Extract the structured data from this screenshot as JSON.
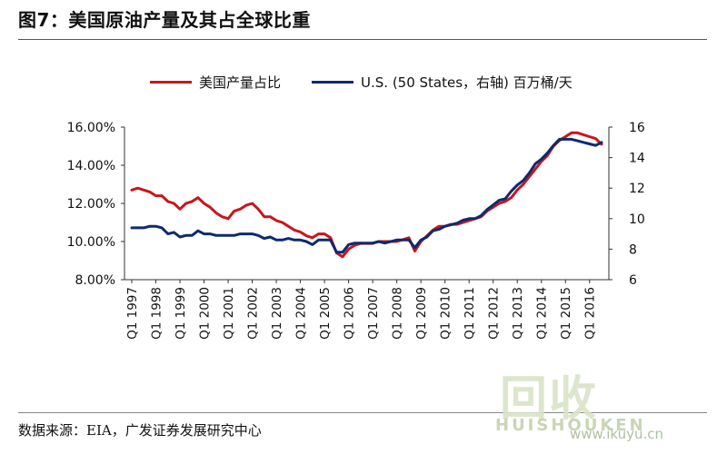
{
  "figure": {
    "title": "图7：美国原油产量及其占全球比重",
    "source": "数据来源：EIA，广发证券发展研究中心"
  },
  "watermark": {
    "main": "回收",
    "sub": "HUISHOUKEN",
    "url": "www.ikuyu.cn"
  },
  "colors": {
    "share_series": "#c8161d",
    "us_series": "#0e2a6e",
    "axis": "#333333"
  },
  "chart_data": {
    "type": "line",
    "legend_position": "top",
    "grid": false,
    "x": [
      "Q1 1997",
      "Q2 1997",
      "Q3 1997",
      "Q4 1997",
      "Q1 1998",
      "Q2 1998",
      "Q3 1998",
      "Q4 1998",
      "Q1 1999",
      "Q2 1999",
      "Q3 1999",
      "Q4 1999",
      "Q1 2000",
      "Q2 2000",
      "Q3 2000",
      "Q4 2000",
      "Q1 2001",
      "Q2 2001",
      "Q3 2001",
      "Q4 2001",
      "Q1 2002",
      "Q2 2002",
      "Q3 2002",
      "Q4 2002",
      "Q1 2003",
      "Q2 2003",
      "Q3 2003",
      "Q4 2003",
      "Q1 2004",
      "Q2 2004",
      "Q3 2004",
      "Q4 2004",
      "Q1 2005",
      "Q2 2005",
      "Q3 2005",
      "Q4 2005",
      "Q1 2006",
      "Q2 2006",
      "Q3 2006",
      "Q4 2006",
      "Q1 2007",
      "Q2 2007",
      "Q3 2007",
      "Q4 2007",
      "Q1 2008",
      "Q2 2008",
      "Q3 2008",
      "Q4 2008",
      "Q1 2009",
      "Q2 2009",
      "Q3 2009",
      "Q4 2009",
      "Q1 2010",
      "Q2 2010",
      "Q3 2010",
      "Q4 2010",
      "Q1 2011",
      "Q2 2011",
      "Q3 2011",
      "Q4 2011",
      "Q1 2012",
      "Q2 2012",
      "Q3 2012",
      "Q4 2012",
      "Q1 2013",
      "Q2 2013",
      "Q3 2013",
      "Q4 2013",
      "Q1 2014",
      "Q2 2014",
      "Q3 2014",
      "Q4 2014",
      "Q1 2015",
      "Q2 2015",
      "Q3 2015",
      "Q4 2015",
      "Q1 2016",
      "Q2 2016",
      "Q3 2016"
    ],
    "x_tick_labels": [
      "Q1 1997",
      "Q1 1998",
      "Q1 1999",
      "Q1 2000",
      "Q1 2001",
      "Q1 2002",
      "Q1 2003",
      "Q1 2004",
      "Q1 2005",
      "Q1 2006",
      "Q1 2007",
      "Q1 2008",
      "Q1 2009",
      "Q1 2010",
      "Q1 2011",
      "Q1 2012",
      "Q1 2013",
      "Q1 2014",
      "Q1 2015",
      "Q1 2016"
    ],
    "y_left": {
      "ylim": [
        8,
        16
      ],
      "ticks": [
        "8.00%",
        "10.00%",
        "12.00%",
        "14.00%",
        "16.00%"
      ],
      "tick_values": [
        8,
        10,
        12,
        14,
        16
      ]
    },
    "y_right": {
      "ylim": [
        6,
        16
      ],
      "ticks": [
        "6",
        "8",
        "10",
        "12",
        "14",
        "16"
      ],
      "tick_values": [
        6,
        8,
        10,
        12,
        14,
        16
      ]
    },
    "series": [
      {
        "name": "美国产量占比",
        "axis": "left",
        "values": [
          12.7,
          12.8,
          12.7,
          12.6,
          12.4,
          12.4,
          12.1,
          12.0,
          11.7,
          12.0,
          12.1,
          12.3,
          12.0,
          11.8,
          11.5,
          11.3,
          11.2,
          11.6,
          11.7,
          11.9,
          12.0,
          11.7,
          11.3,
          11.3,
          11.1,
          11.0,
          10.8,
          10.6,
          10.5,
          10.3,
          10.2,
          10.4,
          10.4,
          10.2,
          9.4,
          9.2,
          9.6,
          9.8,
          9.9,
          9.9,
          9.9,
          10.0,
          10.0,
          10.0,
          10.0,
          10.1,
          10.2,
          9.5,
          10.0,
          10.3,
          10.6,
          10.8,
          10.8,
          10.9,
          10.9,
          11.0,
          11.1,
          11.2,
          11.3,
          11.6,
          11.8,
          12.0,
          12.1,
          12.3,
          12.7,
          13.0,
          13.4,
          13.8,
          14.2,
          14.5,
          15.0,
          15.3,
          15.5,
          15.7,
          15.7,
          15.6,
          15.5,
          15.4,
          15.1
        ]
      },
      {
        "name": "U.S. (50 States，右轴) 百万桶/天",
        "axis": "right",
        "values": [
          9.4,
          9.4,
          9.4,
          9.5,
          9.5,
          9.4,
          9.0,
          9.1,
          8.8,
          8.9,
          8.9,
          9.2,
          9.0,
          9.0,
          8.9,
          8.9,
          8.9,
          8.9,
          9.0,
          9.0,
          9.0,
          8.9,
          8.7,
          8.8,
          8.6,
          8.6,
          8.7,
          8.6,
          8.6,
          8.5,
          8.3,
          8.6,
          8.6,
          8.6,
          7.8,
          7.8,
          8.3,
          8.4,
          8.4,
          8.4,
          8.4,
          8.5,
          8.4,
          8.5,
          8.6,
          8.6,
          8.6,
          8.1,
          8.6,
          8.8,
          9.2,
          9.3,
          9.5,
          9.6,
          9.7,
          9.9,
          10.0,
          10.0,
          10.2,
          10.6,
          10.9,
          11.2,
          11.3,
          11.8,
          12.2,
          12.5,
          13.0,
          13.6,
          13.9,
          14.3,
          14.8,
          15.2,
          15.2,
          15.2,
          15.1,
          15.0,
          14.9,
          14.8,
          15.0
        ]
      }
    ]
  }
}
